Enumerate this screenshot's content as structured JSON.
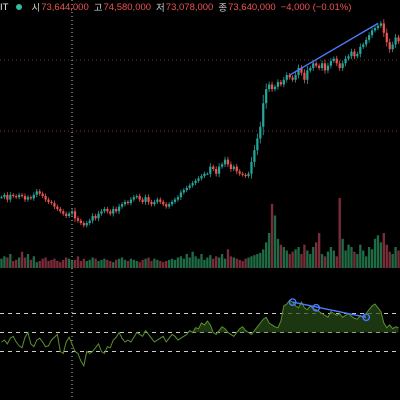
{
  "header": {
    "symbol": "IT",
    "status_color": "#2fbf9a",
    "open_label": "시",
    "open_value": "73,644,000",
    "high_label": "고",
    "high_value": "74,580,000",
    "low_label": "저",
    "low_value": "73,078,000",
    "close_label": "종",
    "close_value": "73,640,000",
    "change": "−4,000 (−0.01%)"
  },
  "colors": {
    "up": "#26a69a",
    "down": "#ef5350",
    "vol_up": "#1f6b46",
    "vol_down": "#7a2c3a",
    "rsi_line": "#5b8f2e",
    "rsi_fill": "#274d18",
    "trendline": "#4a7bff",
    "grid_red": "#7a2f3a",
    "grid_white": "#cccccc"
  },
  "chart_data": [
    {
      "type": "candlestick",
      "title": "",
      "xlabel": "",
      "ylabel": "",
      "ylim": [
        63900000,
        74800000
      ],
      "grid": true,
      "n_bars": 136,
      "close": [
        67000000,
        67100000,
        66900000,
        67100000,
        67050000,
        67000000,
        67100000,
        67050000,
        66900000,
        67000000,
        66950000,
        67100000,
        67250000,
        67150000,
        67050000,
        66900000,
        66800000,
        66750000,
        66600000,
        66500000,
        66400000,
        66300000,
        66200000,
        66300000,
        66400000,
        66100000,
        66000000,
        65900000,
        65800000,
        65900000,
        66000000,
        66200000,
        66100000,
        66300000,
        66400000,
        66500000,
        66400000,
        66300000,
        66500000,
        66400000,
        66600000,
        66700000,
        66800000,
        66750000,
        66900000,
        67000000,
        67050000,
        66900000,
        66800000,
        67000000,
        66800000,
        66700000,
        66800000,
        66900000,
        66800000,
        66700000,
        66600000,
        66700000,
        66800000,
        66900000,
        67000000,
        67200000,
        67300000,
        67400000,
        67500000,
        67600000,
        67700000,
        67800000,
        67900000,
        68000000,
        68000000,
        68300000,
        68200000,
        68000000,
        68300000,
        68400000,
        68600000,
        68400000,
        68200000,
        68300000,
        68100000,
        68000000,
        67950000,
        67900000,
        68000000,
        68500000,
        69000000,
        69500000,
        70000000,
        71000000,
        71600000,
        71800000,
        71600000,
        71700000,
        71900000,
        71800000,
        72000000,
        72200000,
        72100000,
        72000000,
        72200000,
        72500000,
        72300000,
        72000000,
        72400000,
        72500000,
        72700000,
        72600000,
        72500000,
        72700000,
        72400000,
        72600000,
        72800000,
        72900000,
        72700000,
        72500000,
        72700000,
        72900000,
        73000000,
        73200000,
        73000000,
        73100000,
        73400000,
        73500000,
        73700000,
        73900000,
        74100000,
        74200000,
        74300000,
        74400000,
        74000000,
        73600000,
        73300000,
        73500000,
        73800000,
        73640000
      ]
    },
    {
      "type": "bar",
      "title": "",
      "xlabel": "",
      "ylabel": "",
      "series": [
        {
          "values": [
            8,
            10,
            9,
            12,
            6,
            7,
            9,
            14,
            9,
            12,
            7,
            10,
            5,
            6,
            8,
            9,
            6,
            7,
            8,
            6,
            5,
            7,
            9,
            8,
            6,
            7,
            10,
            6,
            8,
            6,
            7,
            9,
            8,
            6,
            7,
            8,
            7,
            6,
            5,
            7,
            8,
            9,
            7,
            6,
            8,
            7,
            6,
            5,
            7,
            8,
            9,
            6,
            8,
            7,
            6,
            5,
            6,
            7,
            8,
            7,
            9,
            10,
            8,
            12,
            9,
            14,
            10,
            8,
            12,
            7,
            9,
            11,
            8,
            10,
            9,
            12,
            8,
            16,
            10,
            9,
            8,
            7,
            6,
            8,
            9,
            10,
            11,
            12,
            13,
            16,
            22,
            30,
            55,
            45,
            25,
            20,
            18,
            15,
            12,
            14,
            16,
            18,
            12,
            20,
            15,
            12,
            18,
            22,
            30,
            12,
            10,
            14,
            18,
            15,
            10,
            60,
            25,
            15,
            20,
            18,
            14,
            12,
            20,
            15,
            10,
            18,
            16,
            25,
            28,
            22,
            30,
            20,
            14,
            12,
            18,
            15
          ]
        }
      ]
    },
    {
      "type": "line",
      "title": "",
      "xlabel": "",
      "ylabel": "",
      "ylim": [
        0,
        100
      ],
      "reference_lines": [
        30,
        50,
        70
      ],
      "series": [
        {
          "values": [
            40,
            42,
            38,
            44,
            46,
            40,
            36,
            34,
            45,
            50,
            38,
            35,
            42,
            44,
            40,
            35,
            36,
            42,
            45,
            48,
            30,
            28,
            40,
            45,
            38,
            30,
            28,
            20,
            15,
            30,
            28,
            30,
            34,
            38,
            30,
            28,
            35,
            34,
            42,
            45,
            50,
            44,
            40,
            42,
            40,
            45,
            50,
            48,
            46,
            52,
            48,
            44,
            40,
            42,
            44,
            46,
            40,
            44,
            48,
            46,
            42,
            44,
            46,
            48,
            52,
            50,
            55,
            54,
            60,
            58,
            62,
            58,
            50,
            48,
            52,
            56,
            54,
            50,
            48,
            46,
            50,
            54,
            56,
            52,
            50,
            48,
            52,
            56,
            60,
            64,
            66,
            60,
            58,
            56,
            55,
            62,
            78,
            80,
            84,
            82,
            78,
            76,
            82,
            76,
            74,
            78,
            75,
            74,
            72,
            70,
            68,
            66,
            72,
            70,
            68,
            70,
            66,
            68,
            70,
            67,
            65,
            64,
            68,
            66,
            70,
            74,
            78,
            80,
            76,
            72,
            60,
            55,
            58,
            54,
            56,
            55
          ]
        }
      ],
      "trendline": {
        "from_bar": 99,
        "from_value": 82,
        "to_bar": 124,
        "to_value": 66
      }
    }
  ]
}
